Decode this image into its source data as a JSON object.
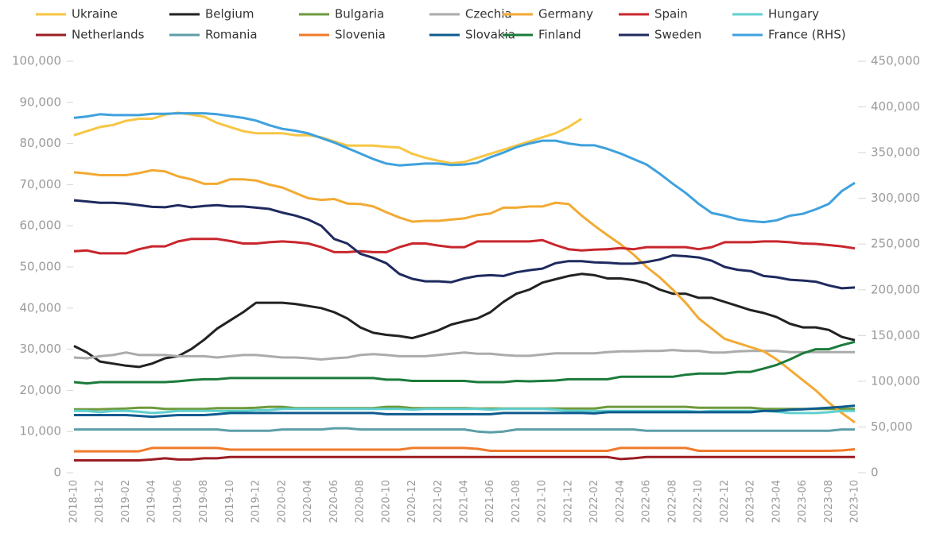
{
  "chart_data": {
    "type": "line",
    "categories": [
      "2018-10",
      null,
      "2018-12",
      null,
      "2019-02",
      null,
      "2019-04",
      null,
      "2019-06",
      null,
      "2019-08",
      null,
      "2019-10",
      null,
      "2019-12",
      null,
      "2020-02",
      null,
      "2020-04",
      null,
      "2020-06",
      null,
      "2020-08",
      null,
      "2020-10",
      null,
      "2020-12",
      null,
      "2021-02",
      null,
      "2021-04",
      null,
      "2021-06",
      null,
      "2021-08",
      null,
      "2021-10",
      null,
      "2021-12",
      null,
      "2022-02",
      null,
      "2022-04",
      null,
      "2022-06",
      null,
      "2022-08",
      null,
      "2022-10",
      null,
      "2022-12",
      null,
      "2023-02",
      null,
      "2023-04",
      null,
      "2023-06",
      null,
      "2023-08",
      null,
      "2023-10"
    ],
    "ylim": [
      0,
      100000
    ],
    "yticks": [
      0,
      {
        "value": 10000,
        "label": "10,000"
      },
      {
        "value": 20000,
        "label": "20,000"
      },
      {
        "value": 30000,
        "label": "30,000"
      },
      {
        "value": 40000,
        "label": "40,000"
      },
      {
        "value": 50000,
        "label": "50,000"
      },
      {
        "value": 60000,
        "label": "60,000"
      },
      {
        "value": 70000,
        "label": "70,000"
      },
      {
        "value": 80000,
        "label": "80,000"
      },
      {
        "value": 90000,
        "label": "90,000"
      },
      {
        "value": 100000,
        "label": "100,000"
      }
    ],
    "y2lim": [
      0,
      450000
    ],
    "y2ticks": [
      0,
      {
        "value": 50000,
        "label": "50,000"
      },
      {
        "value": 100000,
        "label": "100,000"
      },
      {
        "value": 150000,
        "label": "150,000"
      },
      {
        "value": 200000,
        "label": "200,000"
      },
      {
        "value": 250000,
        "label": "250,000"
      },
      {
        "value": 300000,
        "label": "300,000"
      },
      {
        "value": 350000,
        "label": "350,000"
      },
      {
        "value": 400000,
        "label": "400,000"
      },
      {
        "value": 450000,
        "label": "450,000"
      }
    ],
    "grid": false,
    "legend": "top",
    "series": [
      {
        "name": "Ukraine",
        "color": "#f6c644",
        "values": [
          82000,
          83000,
          84000,
          84500,
          85500,
          86000,
          86000,
          87000,
          87500,
          87000,
          86500,
          85000,
          84000,
          83000,
          82500,
          82500,
          82500,
          82000,
          82000,
          81500,
          80500,
          79500,
          79500,
          79500,
          79200,
          79000,
          77500,
          76500,
          75800,
          75200,
          75500,
          76500,
          77500,
          78500,
          79500,
          80500,
          81500,
          82500,
          84000,
          86000,
          null,
          null,
          null,
          null,
          null,
          null,
          null,
          null,
          null,
          null,
          null,
          null,
          null,
          null,
          null,
          null,
          null,
          null,
          null,
          null,
          null
        ]
      },
      {
        "name": "Belgium",
        "color": "#222222",
        "values": [
          30800,
          29200,
          27000,
          26500,
          26000,
          25700,
          26500,
          27800,
          28300,
          30000,
          32300,
          35000,
          37000,
          39000,
          41300,
          41300,
          41300,
          41000,
          40500,
          40000,
          39000,
          37500,
          35300,
          34000,
          33500,
          33200,
          32700,
          33600,
          34600,
          36000,
          36800,
          37500,
          39000,
          41500,
          43500,
          44500,
          46200,
          47000,
          47800,
          48300,
          48000,
          47200,
          47200,
          46800,
          46000,
          44500,
          43500,
          43500,
          42500,
          42500,
          41500,
          40500,
          39500,
          38800,
          37800,
          36200,
          35300,
          35300,
          34700,
          33000,
          32200
        ]
      },
      {
        "name": "Bulgaria",
        "color": "#6f9a3c",
        "values": [
          15400,
          15400,
          15400,
          15500,
          15600,
          15800,
          15800,
          15500,
          15500,
          15500,
          15500,
          15700,
          15700,
          15700,
          15800,
          16000,
          16000,
          15700,
          15700,
          15700,
          15700,
          15700,
          15700,
          15700,
          16000,
          16000,
          15700,
          15700,
          15700,
          15700,
          15700,
          15600,
          15600,
          15600,
          15600,
          15600,
          15600,
          15600,
          15600,
          15600,
          15600,
          16000,
          16000,
          16000,
          16000,
          16000,
          16000,
          16000,
          15800,
          15800,
          15800,
          15800,
          15800,
          15500,
          15500,
          15500,
          15500,
          15500,
          15500,
          15500,
          15500
        ]
      },
      {
        "name": "Czechia",
        "color": "#ababab",
        "values": [
          28000,
          27800,
          28300,
          28600,
          29200,
          28600,
          28600,
          28600,
          28300,
          28300,
          28300,
          28000,
          28300,
          28600,
          28600,
          28300,
          28000,
          28000,
          27800,
          27500,
          27800,
          28000,
          28600,
          28800,
          28600,
          28300,
          28300,
          28300,
          28600,
          28900,
          29200,
          28900,
          28900,
          28600,
          28400,
          28400,
          28700,
          29000,
          29000,
          29000,
          29000,
          29300,
          29500,
          29500,
          29600,
          29600,
          29800,
          29600,
          29600,
          29200,
          29200,
          29500,
          29600,
          29600,
          29600,
          29300,
          29300,
          29300,
          29300,
          29300,
          29300
        ]
      },
      {
        "name": "Germany",
        "color": "#f2aa34",
        "values": [
          73000,
          72700,
          72300,
          72300,
          72300,
          72800,
          73500,
          73200,
          72000,
          71300,
          70200,
          70200,
          71300,
          71300,
          71000,
          70000,
          69300,
          68000,
          66700,
          66300,
          66500,
          65400,
          65300,
          64700,
          63300,
          62000,
          61000,
          61200,
          61200,
          61500,
          61800,
          62600,
          63000,
          64400,
          64400,
          64700,
          64700,
          65600,
          65300,
          62500,
          60000,
          57700,
          55500,
          53000,
          50000,
          47500,
          44500,
          41300,
          37500,
          35000,
          32500,
          31500,
          30500,
          29500,
          27500,
          25000,
          22500,
          20000,
          17000,
          14500,
          12200
        ]
      },
      {
        "name": "Spain",
        "color": "#c8262d",
        "values": [
          53800,
          54000,
          53300,
          53300,
          53300,
          54300,
          55000,
          55000,
          56200,
          56800,
          56800,
          56800,
          56300,
          55700,
          55700,
          56000,
          56200,
          56000,
          55700,
          54800,
          53600,
          53600,
          53800,
          53600,
          53600,
          54800,
          55700,
          55700,
          55200,
          54800,
          54800,
          56200,
          56200,
          56200,
          56200,
          56200,
          56500,
          55300,
          54300,
          54000,
          54200,
          54300,
          54600,
          54300,
          54800,
          54800,
          54800,
          54800,
          54300,
          54800,
          56000,
          56000,
          56000,
          56200,
          56200,
          56000,
          55700,
          55600,
          55300,
          55000,
          54500
        ]
      },
      {
        "name": "Hungary",
        "color": "#5fd0cf",
        "values": [
          15000,
          15000,
          14700,
          15000,
          15000,
          14800,
          14500,
          14700,
          15000,
          15000,
          15000,
          15000,
          15000,
          15000,
          15200,
          15200,
          15500,
          15500,
          15500,
          15500,
          15500,
          15500,
          15500,
          15500,
          15500,
          15500,
          15300,
          15500,
          15500,
          15500,
          15500,
          15500,
          15300,
          15500,
          15500,
          15500,
          15500,
          15300,
          15000,
          15000,
          15000,
          15000,
          15000,
          15000,
          15000,
          15000,
          15000,
          15000,
          14800,
          15000,
          15000,
          15000,
          15000,
          15000,
          14800,
          14500,
          14500,
          14500,
          14700,
          15000,
          15000
        ]
      },
      {
        "name": "Netherlands",
        "color": "#9b1c22",
        "values": [
          3000,
          3000,
          3000,
          3000,
          3000,
          3000,
          3200,
          3500,
          3200,
          3200,
          3500,
          3500,
          3800,
          3800,
          3800,
          3800,
          3800,
          3800,
          3800,
          3800,
          3800,
          3800,
          3800,
          3800,
          3800,
          3800,
          3800,
          3800,
          3800,
          3800,
          3800,
          3800,
          3800,
          3800,
          3800,
          3800,
          3800,
          3800,
          3800,
          3800,
          3800,
          3800,
          3300,
          3500,
          3800,
          3800,
          3800,
          3800,
          3800,
          3800,
          3800,
          3800,
          3800,
          3800,
          3800,
          3800,
          3800,
          3800,
          3800,
          3800,
          3800
        ]
      },
      {
        "name": "Romania",
        "color": "#5c9ea7",
        "values": [
          10500,
          10500,
          10500,
          10500,
          10500,
          10500,
          10500,
          10500,
          10500,
          10500,
          10500,
          10500,
          10200,
          10200,
          10200,
          10200,
          10500,
          10500,
          10500,
          10500,
          10800,
          10800,
          10500,
          10500,
          10500,
          10500,
          10500,
          10500,
          10500,
          10500,
          10500,
          10000,
          9800,
          10000,
          10500,
          10500,
          10500,
          10500,
          10500,
          10500,
          10500,
          10500,
          10500,
          10500,
          10200,
          10200,
          10200,
          10200,
          10200,
          10200,
          10200,
          10200,
          10200,
          10200,
          10200,
          10200,
          10200,
          10200,
          10200,
          10500,
          10500
        ]
      },
      {
        "name": "Slovenia",
        "color": "#f07b2b",
        "values": [
          5200,
          5200,
          5200,
          5200,
          5200,
          5200,
          6000,
          6000,
          6000,
          6000,
          6000,
          6000,
          5600,
          5600,
          5600,
          5600,
          5600,
          5600,
          5600,
          5600,
          5600,
          5600,
          5600,
          5600,
          5600,
          5600,
          6000,
          6000,
          6000,
          6000,
          6000,
          5800,
          5300,
          5300,
          5300,
          5300,
          5300,
          5300,
          5300,
          5300,
          5300,
          5300,
          6000,
          6000,
          6000,
          6000,
          6000,
          6000,
          5300,
          5300,
          5300,
          5300,
          5300,
          5300,
          5300,
          5300,
          5300,
          5300,
          5300,
          5400,
          5700
        ]
      },
      {
        "name": "Slovakia",
        "color": "#0e5b8e",
        "values": [
          14000,
          14000,
          14000,
          14000,
          14000,
          13800,
          13600,
          13800,
          14000,
          14000,
          14000,
          14200,
          14500,
          14500,
          14500,
          14500,
          14500,
          14500,
          14500,
          14500,
          14500,
          14500,
          14500,
          14500,
          14200,
          14200,
          14200,
          14200,
          14200,
          14200,
          14200,
          14200,
          14200,
          14500,
          14500,
          14500,
          14500,
          14500,
          14500,
          14500,
          14400,
          14700,
          14700,
          14700,
          14700,
          14700,
          14700,
          14700,
          14700,
          14700,
          14700,
          14700,
          14700,
          15000,
          15000,
          15300,
          15400,
          15600,
          15800,
          16000,
          16300
        ]
      },
      {
        "name": "Finland",
        "color": "#1b7b3b",
        "values": [
          22000,
          21700,
          22000,
          22000,
          22000,
          22000,
          22000,
          22000,
          22200,
          22500,
          22700,
          22700,
          23000,
          23000,
          23000,
          23000,
          23000,
          23000,
          23000,
          23000,
          23000,
          23000,
          23000,
          23000,
          22600,
          22600,
          22300,
          22300,
          22300,
          22300,
          22300,
          22000,
          22000,
          22000,
          22300,
          22200,
          22300,
          22400,
          22700,
          22700,
          22700,
          22700,
          23300,
          23300,
          23300,
          23300,
          23300,
          23800,
          24100,
          24100,
          24100,
          24500,
          24500,
          25300,
          26200,
          27500,
          29000,
          30000,
          30000,
          31000,
          31800
        ]
      },
      {
        "name": "Sweden",
        "color": "#1f2a5e",
        "values": [
          66200,
          65900,
          65600,
          65600,
          65400,
          65000,
          64600,
          64500,
          65000,
          64500,
          64800,
          65000,
          64700,
          64700,
          64400,
          64100,
          63200,
          62500,
          61500,
          60000,
          56800,
          55700,
          53200,
          52200,
          50900,
          48300,
          47100,
          46500,
          46500,
          46300,
          47200,
          47800,
          48000,
          47800,
          48700,
          49200,
          49600,
          50900,
          51400,
          51400,
          51100,
          51000,
          50800,
          50800,
          51200,
          51800,
          52800,
          52600,
          52300,
          51500,
          50000,
          49300,
          49000,
          47800,
          47500,
          46900,
          46700,
          46400,
          45500,
          44800,
          45000
        ]
      },
      {
        "name": "France (RHS)",
        "color": "#3fa1dd",
        "axis": "y2",
        "values": [
          388000,
          389500,
          392000,
          391000,
          391000,
          391000,
          392500,
          392500,
          393000,
          393000,
          393000,
          392000,
          390000,
          388000,
          385000,
          380000,
          376000,
          374000,
          371000,
          366000,
          361000,
          355000,
          349000,
          343000,
          338000,
          336000,
          337000,
          338000,
          338000,
          336500,
          337000,
          339000,
          345000,
          350000,
          356000,
          360000,
          363000,
          363000,
          360000,
          358000,
          358000,
          354000,
          349000,
          343000,
          337000,
          327000,
          316000,
          306000,
          294000,
          284000,
          281000,
          277000,
          275000,
          274000,
          276000,
          281000,
          283000,
          288000,
          294000,
          308000,
          317000
        ]
      }
    ]
  }
}
